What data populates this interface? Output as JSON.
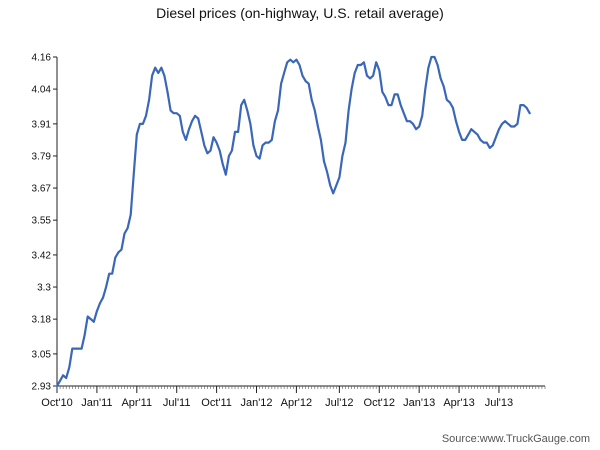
{
  "chart_data": {
    "type": "line",
    "title": "Diesel prices (on-highway, U.S. retail average)",
    "xlabel": "",
    "ylabel": "",
    "source": "Source:www.TruckGauge.com",
    "ylim": [
      2.93,
      4.16
    ],
    "yticks": [
      "4.16",
      "4.04",
      "3.91",
      "3.79",
      "3.67",
      "3.55",
      "3.42",
      "3.3",
      "3.18",
      "3.05",
      "2.93"
    ],
    "xlim": [
      0,
      159
    ],
    "xticks": [
      {
        "label": "Oct'10",
        "x": 0
      },
      {
        "label": "Jan'11",
        "x": 13
      },
      {
        "label": "Apr'11",
        "x": 26
      },
      {
        "label": "Jul'11",
        "x": 39
      },
      {
        "label": "Oct'11",
        "x": 52
      },
      {
        "label": "Jan'12",
        "x": 65
      },
      {
        "label": "Apr'12",
        "x": 78
      },
      {
        "label": "Jul'12",
        "x": 92
      },
      {
        "label": "Oct'12",
        "x": 105
      },
      {
        "label": "Jan'13",
        "x": 118
      },
      {
        "label": "Apr'13",
        "x": 131
      },
      {
        "label": "Jul'13",
        "x": 144
      }
    ],
    "series": [
      {
        "name": "Diesel price",
        "color": "#3a67b8",
        "points": [
          [
            0,
            2.93
          ],
          [
            1,
            2.95
          ],
          [
            2,
            2.97
          ],
          [
            3,
            2.96
          ],
          [
            4,
            3.0
          ],
          [
            5,
            3.07
          ],
          [
            6,
            3.07
          ],
          [
            7,
            3.07
          ],
          [
            8,
            3.07
          ],
          [
            9,
            3.12
          ],
          [
            10,
            3.19
          ],
          [
            11,
            3.18
          ],
          [
            12,
            3.17
          ],
          [
            13,
            3.21
          ],
          [
            14,
            3.24
          ],
          [
            15,
            3.26
          ],
          [
            16,
            3.3
          ],
          [
            17,
            3.35
          ],
          [
            18,
            3.35
          ],
          [
            19,
            3.41
          ],
          [
            20,
            3.43
          ],
          [
            21,
            3.44
          ],
          [
            22,
            3.5
          ],
          [
            23,
            3.52
          ],
          [
            24,
            3.57
          ],
          [
            25,
            3.72
          ],
          [
            26,
            3.87
          ],
          [
            27,
            3.91
          ],
          [
            28,
            3.91
          ],
          [
            29,
            3.94
          ],
          [
            30,
            4.0
          ],
          [
            31,
            4.09
          ],
          [
            32,
            4.12
          ],
          [
            33,
            4.1
          ],
          [
            34,
            4.12
          ],
          [
            35,
            4.09
          ],
          [
            36,
            4.03
          ],
          [
            37,
            3.96
          ],
          [
            38,
            3.95
          ],
          [
            39,
            3.95
          ],
          [
            40,
            3.94
          ],
          [
            41,
            3.88
          ],
          [
            42,
            3.85
          ],
          [
            43,
            3.89
          ],
          [
            44,
            3.92
          ],
          [
            45,
            3.94
          ],
          [
            46,
            3.93
          ],
          [
            47,
            3.88
          ],
          [
            48,
            3.83
          ],
          [
            49,
            3.8
          ],
          [
            50,
            3.81
          ],
          [
            51,
            3.86
          ],
          [
            52,
            3.84
          ],
          [
            53,
            3.81
          ],
          [
            54,
            3.76
          ],
          [
            55,
            3.72
          ],
          [
            56,
            3.79
          ],
          [
            57,
            3.81
          ],
          [
            58,
            3.88
          ],
          [
            59,
            3.88
          ],
          [
            60,
            3.98
          ],
          [
            61,
            4.0
          ],
          [
            62,
            3.96
          ],
          [
            63,
            3.91
          ],
          [
            64,
            3.83
          ],
          [
            65,
            3.79
          ],
          [
            66,
            3.78
          ],
          [
            67,
            3.83
          ],
          [
            68,
            3.84
          ],
          [
            69,
            3.84
          ],
          [
            70,
            3.85
          ],
          [
            71,
            3.92
          ],
          [
            72,
            3.96
          ],
          [
            73,
            4.06
          ],
          [
            74,
            4.1
          ],
          [
            75,
            4.14
          ],
          [
            76,
            4.15
          ],
          [
            77,
            4.14
          ],
          [
            78,
            4.15
          ],
          [
            79,
            4.13
          ],
          [
            80,
            4.09
          ],
          [
            81,
            4.07
          ],
          [
            82,
            4.06
          ],
          [
            83,
            4.0
          ],
          [
            84,
            3.96
          ],
          [
            85,
            3.9
          ],
          [
            86,
            3.85
          ],
          [
            87,
            3.77
          ],
          [
            88,
            3.73
          ],
          [
            89,
            3.68
          ],
          [
            90,
            3.65
          ],
          [
            91,
            3.68
          ],
          [
            92,
            3.71
          ],
          [
            93,
            3.79
          ],
          [
            94,
            3.84
          ],
          [
            95,
            3.96
          ],
          [
            96,
            4.04
          ],
          [
            97,
            4.1
          ],
          [
            98,
            4.13
          ],
          [
            99,
            4.13
          ],
          [
            100,
            4.14
          ],
          [
            101,
            4.09
          ],
          [
            102,
            4.08
          ],
          [
            103,
            4.09
          ],
          [
            104,
            4.14
          ],
          [
            105,
            4.11
          ],
          [
            106,
            4.03
          ],
          [
            107,
            4.01
          ],
          [
            108,
            3.98
          ],
          [
            109,
            3.98
          ],
          [
            110,
            4.02
          ],
          [
            111,
            4.02
          ],
          [
            112,
            3.98
          ],
          [
            113,
            3.95
          ],
          [
            114,
            3.92
          ],
          [
            115,
            3.92
          ],
          [
            116,
            3.91
          ],
          [
            117,
            3.89
          ],
          [
            118,
            3.9
          ],
          [
            119,
            3.94
          ],
          [
            120,
            4.04
          ],
          [
            121,
            4.12
          ],
          [
            122,
            4.16
          ],
          [
            123,
            4.16
          ],
          [
            124,
            4.13
          ],
          [
            125,
            4.08
          ],
          [
            126,
            4.05
          ],
          [
            127,
            4.0
          ],
          [
            128,
            3.99
          ],
          [
            129,
            3.97
          ],
          [
            130,
            3.92
          ],
          [
            131,
            3.88
          ],
          [
            132,
            3.85
          ],
          [
            133,
            3.85
          ],
          [
            134,
            3.87
          ],
          [
            135,
            3.89
          ],
          [
            136,
            3.88
          ],
          [
            137,
            3.87
          ],
          [
            138,
            3.85
          ],
          [
            139,
            3.84
          ],
          [
            140,
            3.84
          ],
          [
            141,
            3.82
          ],
          [
            142,
            3.83
          ],
          [
            143,
            3.86
          ],
          [
            144,
            3.89
          ],
          [
            145,
            3.91
          ],
          [
            146,
            3.92
          ],
          [
            147,
            3.91
          ],
          [
            148,
            3.9
          ],
          [
            149,
            3.9
          ],
          [
            150,
            3.91
          ],
          [
            151,
            3.98
          ],
          [
            152,
            3.98
          ],
          [
            153,
            3.97
          ],
          [
            154,
            3.95
          ]
        ]
      }
    ]
  }
}
